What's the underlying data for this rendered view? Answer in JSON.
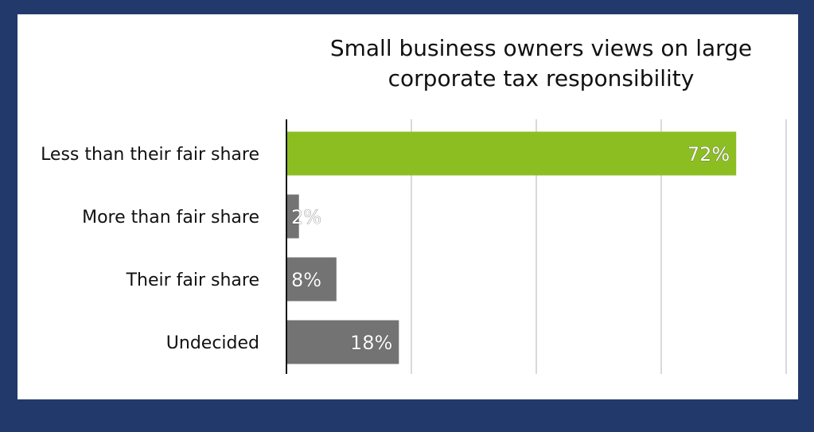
{
  "chart_data": {
    "type": "bar",
    "orientation": "horizontal",
    "title": [
      "Small business owners views on large",
      "corporate tax responsibility"
    ],
    "categories": [
      "Less than their fair share",
      "More than fair share",
      "Their fair share",
      "Undecided"
    ],
    "values": [
      72,
      2,
      8,
      18
    ],
    "value_labels": [
      "72%",
      "2%",
      "8%",
      "18%"
    ],
    "xlim": [
      0,
      80
    ],
    "grid": true,
    "colors": {
      "highlight": "#8cbe22",
      "default": "#737373",
      "background": "#223a6b",
      "panel": "#ffffff",
      "gridline": "#d9d9d9"
    },
    "highlight_index": 0
  }
}
